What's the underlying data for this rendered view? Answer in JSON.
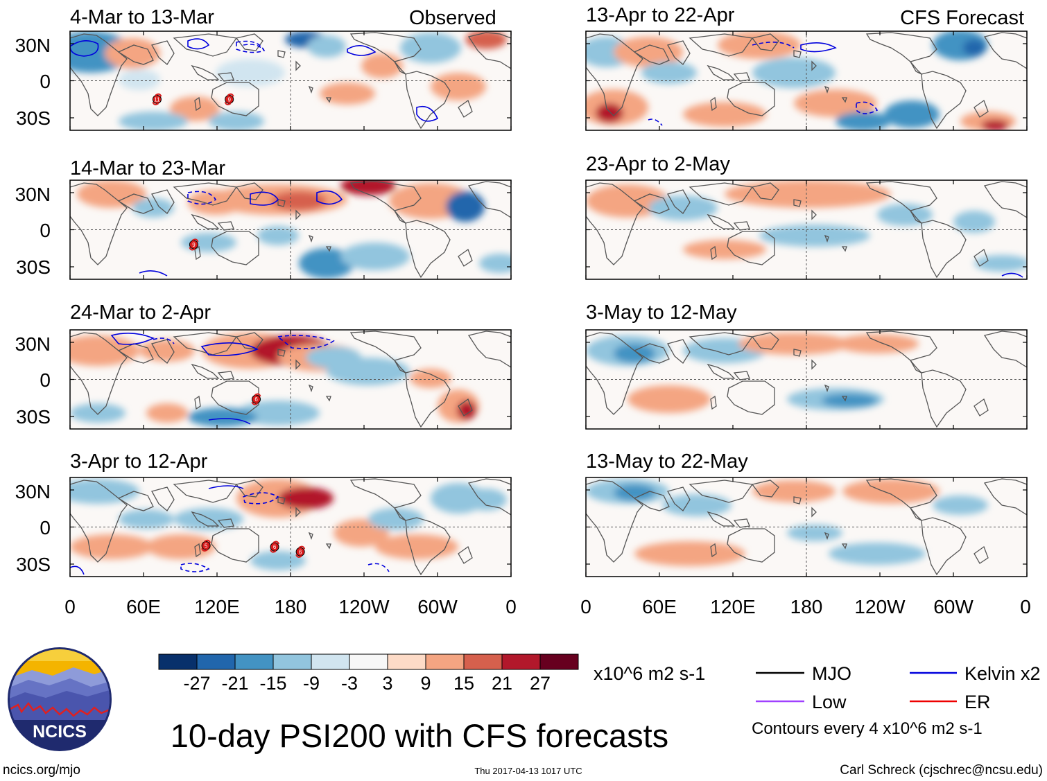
{
  "header_left": "Observed",
  "header_right": "CFS Forecast",
  "observed_panels": [
    {
      "period": "4-Mar to 13-Mar"
    },
    {
      "period": "14-Mar to 23-Mar"
    },
    {
      "period": "24-Mar to 2-Apr"
    },
    {
      "period": "3-Apr to 12-Apr"
    }
  ],
  "forecast_panels": [
    {
      "period": "13-Apr to 22-Apr"
    },
    {
      "period": "23-Apr to 2-May"
    },
    {
      "period": "3-May to 12-May"
    },
    {
      "period": "13-May to 22-May"
    }
  ],
  "lat_labels": [
    "30N",
    "0",
    "30S"
  ],
  "lon_labels": [
    "0",
    "60E",
    "120E",
    "180",
    "120W",
    "60W",
    "0"
  ],
  "colorbar": {
    "colors": [
      "#08306b",
      "#2166ac",
      "#4393c3",
      "#92c5de",
      "#d1e5f0",
      "#f7f7f7",
      "#fddbc7",
      "#f4a582",
      "#d6604d",
      "#b2182b",
      "#67001f"
    ],
    "ticks": [
      "-27",
      "-21",
      "-15",
      "-9",
      "-3",
      "3",
      "9",
      "15",
      "21",
      "27"
    ],
    "units": "x10^6 m2 s-1"
  },
  "legend": {
    "items": [
      {
        "label": "MJO",
        "color": "#000000"
      },
      {
        "label": "Kelvin x2",
        "color": "#0000dd"
      },
      {
        "label": "Low",
        "color": "#a040ff"
      },
      {
        "label": "ER",
        "color": "#ee0000"
      }
    ],
    "contours_note": "Contours every 4 x10^6 m2 s-1"
  },
  "title": "10-day PSI200 with CFS forecasts",
  "logo_text": "NCICS",
  "footer": {
    "url": "ncics.org/mjo",
    "timestamp": "Thu 2017-04-13 1017 UTC",
    "author": "Carl Schreck (cjschrec@ncsu.edu)"
  },
  "storms": [
    {
      "panel": 0,
      "lon_deg": 71,
      "lat_deg": -15,
      "label": "11"
    },
    {
      "panel": 0,
      "lon_deg": 130,
      "lat_deg": -15,
      "label": "9"
    },
    {
      "panel": 1,
      "lon_deg": 101,
      "lat_deg": -12,
      "label": "9"
    },
    {
      "panel": 2,
      "lon_deg": 152,
      "lat_deg": -16,
      "label": "6"
    },
    {
      "panel": 3,
      "lon_deg": 111,
      "lat_deg": -15,
      "label": "5"
    },
    {
      "panel": 3,
      "lon_deg": 167,
      "lat_deg": -16,
      "label": "6"
    },
    {
      "panel": 3,
      "lon_deg": 188,
      "lat_deg": -20,
      "label": "6"
    }
  ]
}
